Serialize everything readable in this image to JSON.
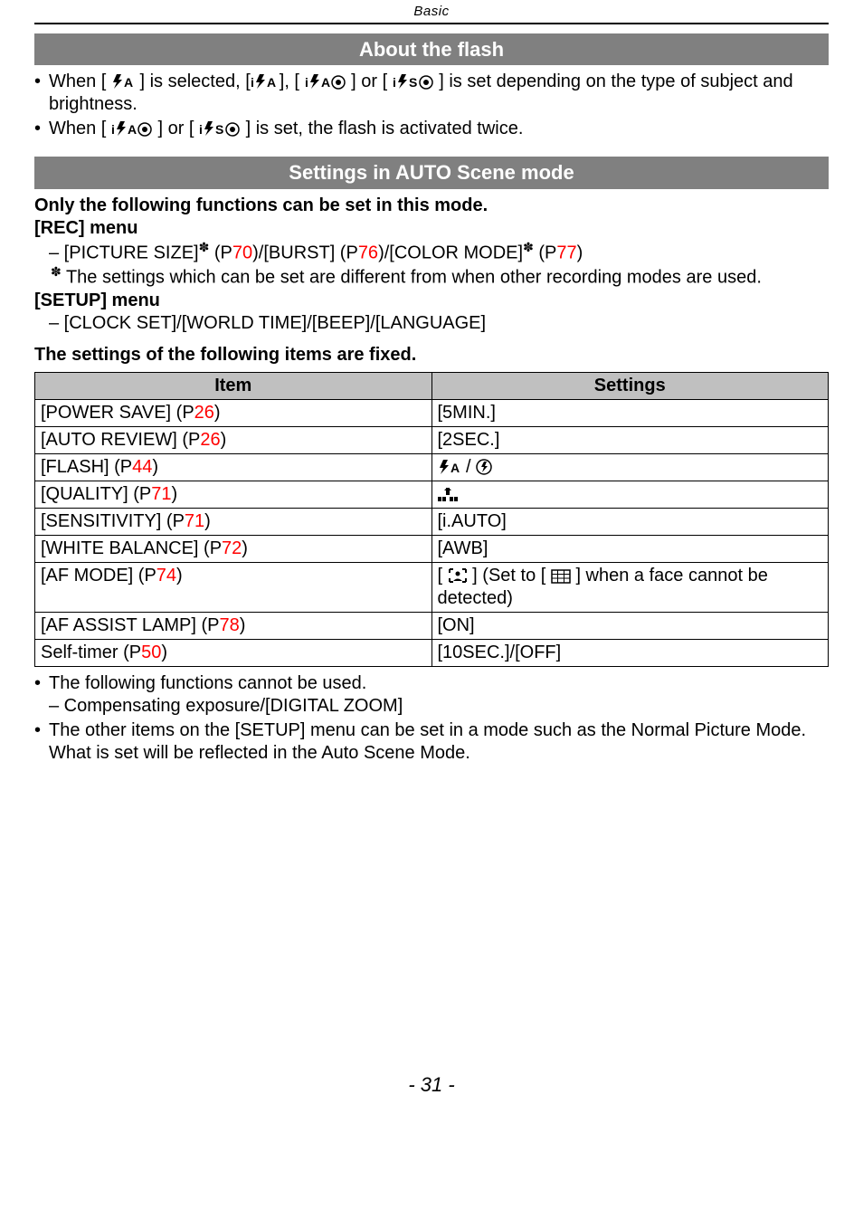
{
  "header": {
    "section": "Basic"
  },
  "flash": {
    "title": "About the flash",
    "b1a": "When [ ",
    "b1b": " ] is selected, [",
    "b1c": "], [ ",
    "b1d": " ] or [ ",
    "b1e": " ] is set depending on the type of subject and brightness.",
    "b2a": "When [ ",
    "b2b": " ] or [ ",
    "b2c": " ] is set, the flash is activated twice."
  },
  "auto": {
    "title": "Settings in AUTO Scene mode",
    "intro": "Only the following functions can be set in this mode.",
    "rec_menu": "[REC] menu",
    "pic_a": "– [PICTURE SIZE]",
    "pic_b": " (P",
    "pic_b_num": "70",
    "pic_c": ")/[BURST] (P",
    "pic_c_num": "76",
    "pic_d": ")/[COLOR MODE]",
    "pic_e": " (P",
    "pic_e_num": "77",
    "pic_f": ")",
    "star_note": "The settings which can be set are different from when other recording modes are used.",
    "setup_menu": "[SETUP] menu",
    "setup_items": "– [CLOCK SET]/[WORLD TIME]/[BEEP]/[LANGUAGE]",
    "fixed": "The settings of the following items are fixed."
  },
  "table": {
    "h1": "Item",
    "h2": "Settings",
    "rows": [
      {
        "item_a": "[POWER SAVE] (P",
        "item_num": "26",
        "item_b": ")",
        "setting": "[5MIN.]"
      },
      {
        "item_a": "[AUTO REVIEW] (P",
        "item_num": "26",
        "item_b": ")",
        "setting": "[2SEC.]"
      },
      {
        "item_a": "[FLASH] (P",
        "item_num": "44",
        "item_b": ")",
        "setting": "__FLASH_ICONS__"
      },
      {
        "item_a": "[QUALITY] (P",
        "item_num": "71",
        "item_b": ")",
        "setting": "__QUALITY_ICON__"
      },
      {
        "item_a": "[SENSITIVITY] (P",
        "item_num": "71",
        "item_b": ")",
        "setting": "[i.AUTO]"
      },
      {
        "item_a": "[WHITE BALANCE] (P",
        "item_num": "72",
        "item_b": ")",
        "setting": "[AWB]"
      },
      {
        "item_a": "[AF MODE] (P",
        "item_num": "74",
        "item_b": ")",
        "setting": "__AF_ICONS__"
      },
      {
        "item_a": "[AF ASSIST LAMP] (P",
        "item_num": "78",
        "item_b": ")",
        "setting": "[ON]"
      },
      {
        "item_a": "Self-timer (P",
        "item_num": "50",
        "item_b": ")",
        "setting": "[10SEC.]/[OFF]"
      }
    ],
    "af_text_a": "[ ",
    "af_text_b": " ] (Set to [ ",
    "af_text_c": " ] when a face cannot be detected)"
  },
  "notes": {
    "n1": "The following functions cannot be used.",
    "n1a": "– Compensating exposure/[DIGITAL ZOOM]",
    "n2": "The other items on the [SETUP] menu can be set in a mode such as the Normal Picture Mode. What is set will be reflected in the Auto Scene Mode."
  },
  "page": "- 31 -",
  "colors": {
    "bar_bg": "#808080",
    "bar_fg": "#ffffff",
    "th_bg": "#c0c0c0",
    "accent": "#ff0000"
  },
  "fonts": {
    "body_pt": 20,
    "header_pt": 15,
    "bar_pt": 22,
    "page_pt": 22
  }
}
